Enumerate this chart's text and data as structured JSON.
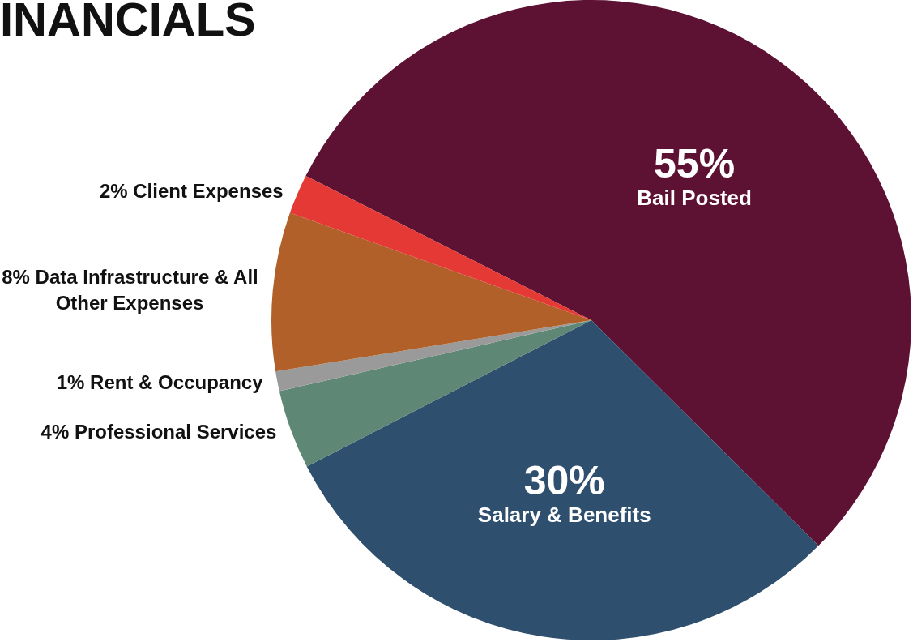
{
  "chart_data": {
    "type": "pie",
    "title": "INANCIALS",
    "categories": [
      "Bail Posted",
      "Salary & Benefits",
      "Professional Services",
      "Rent & Occupancy",
      "Data Infrastructure & All Other Expenses",
      "Client Expenses"
    ],
    "values": [
      55,
      30,
      4,
      1,
      8,
      2
    ],
    "value_labels": [
      "55%",
      "30%",
      "4%",
      "1%",
      "8%",
      "2%"
    ],
    "colors": [
      "#5e1233",
      "#2f4f6e",
      "#5f8775",
      "#9a9a9a",
      "#b06028",
      "#e53935"
    ],
    "data_labels": true,
    "legend": false
  }
}
